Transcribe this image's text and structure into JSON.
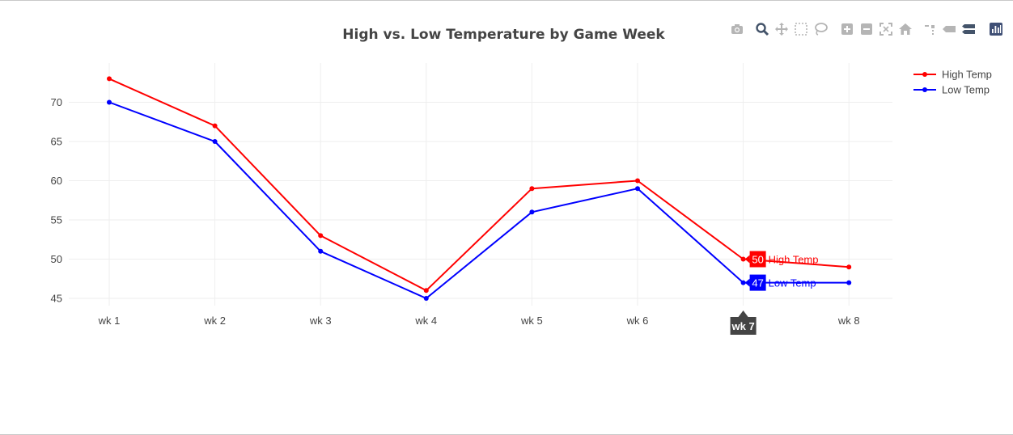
{
  "chart_data": {
    "type": "line",
    "title": "High vs. Low Temperature by Game Week",
    "categories": [
      "wk 1",
      "wk 2",
      "wk 3",
      "wk 4",
      "wk 5",
      "wk 6",
      "wk 7",
      "wk 8"
    ],
    "series": [
      {
        "name": "High Temp",
        "color": "#ff0000",
        "values": [
          73,
          67,
          53,
          46,
          59,
          60,
          50,
          49
        ]
      },
      {
        "name": "Low Temp",
        "color": "#0000ff",
        "values": [
          70,
          65,
          51,
          45,
          56,
          59,
          47,
          47
        ]
      }
    ],
    "yticks": [
      45,
      50,
      55,
      60,
      65,
      70
    ],
    "ylim": [
      44,
      75
    ],
    "grid": true,
    "legend_position": "top-right",
    "hover": {
      "category_index": 6,
      "x_label": "wk 7",
      "labels": [
        {
          "series": "High Temp",
          "value": "50"
        },
        {
          "series": "Low Temp",
          "value": "47"
        }
      ]
    }
  },
  "modebar": {
    "icons": [
      "camera-icon",
      "zoom-icon",
      "pan-icon",
      "box-select-icon",
      "lasso-select-icon",
      "zoom-in-icon",
      "zoom-out-icon",
      "autoscale-icon",
      "reset-axes-icon",
      "spike-lines-icon",
      "hover-closest-icon",
      "hover-compare-icon",
      "plotly-logo-icon"
    ]
  }
}
